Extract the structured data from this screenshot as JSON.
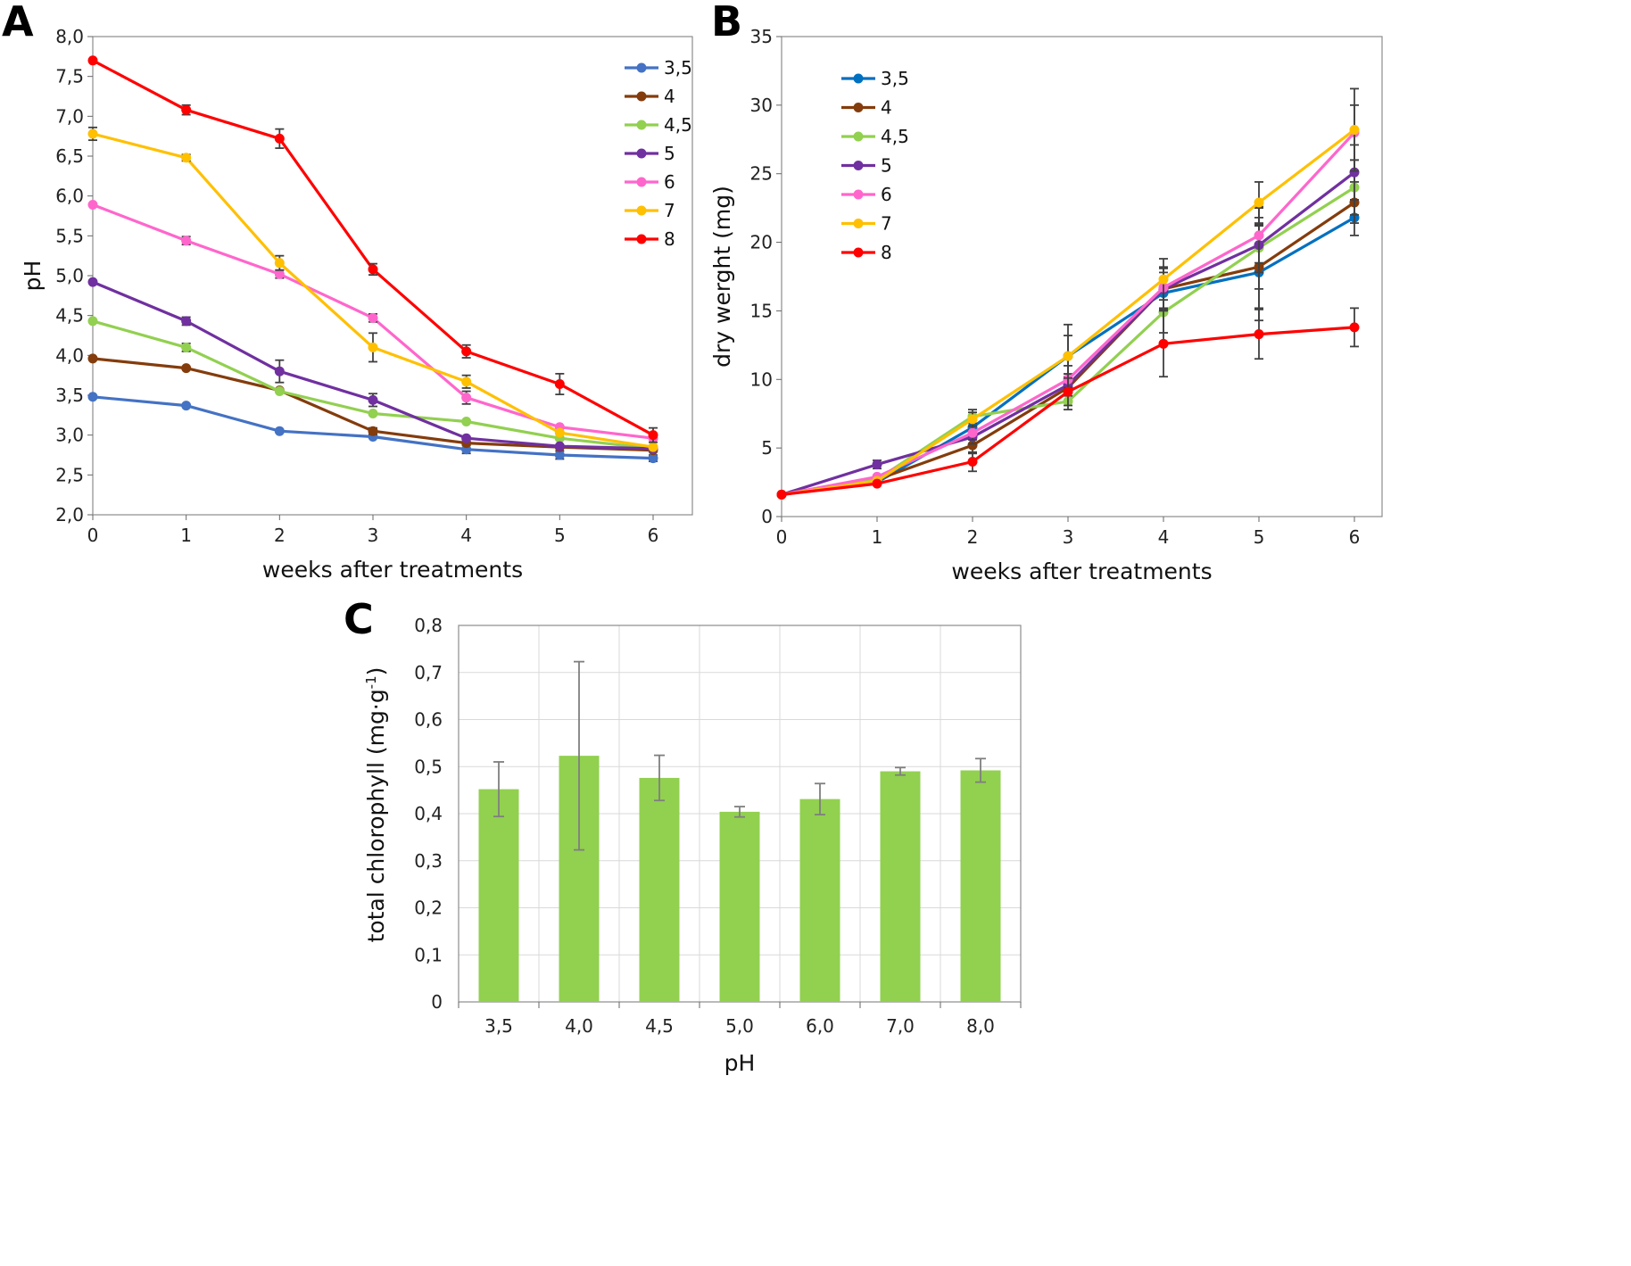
{
  "chart_data": [
    {
      "panel": "A",
      "type": "line",
      "xlabel": "weeks after treatments",
      "ylabel": "pH",
      "x": [
        0,
        1,
        2,
        3,
        4,
        5,
        6
      ],
      "xticks": [
        "0",
        "1",
        "2",
        "3",
        "4",
        "5",
        "6"
      ],
      "ylim": [
        2.0,
        8.0
      ],
      "yticks": [
        "2,0",
        "2,5",
        "3,0",
        "3,5",
        "4,0",
        "4,5",
        "5,0",
        "5,5",
        "6,0",
        "6,5",
        "7,0",
        "7,5",
        "8,0"
      ],
      "legend_position": "top-right",
      "series": [
        {
          "name": "3,5",
          "color": "#4472C4",
          "values": [
            3.48,
            3.37,
            3.05,
            2.98,
            2.82,
            2.75,
            2.71
          ],
          "errors": [
            0,
            0,
            0,
            0,
            0.05,
            0.05,
            0.04
          ]
        },
        {
          "name": "4",
          "color": "#843C0C",
          "values": [
            3.96,
            3.84,
            3.56,
            3.05,
            2.9,
            2.85,
            2.81
          ],
          "errors": [
            0,
            0,
            0,
            0.04,
            0,
            0,
            0
          ]
        },
        {
          "name": "4,5",
          "color": "#92D050",
          "values": [
            4.43,
            4.1,
            3.55,
            3.27,
            3.17,
            2.96,
            2.83
          ],
          "errors": [
            0,
            0.05,
            0,
            0,
            0,
            0,
            0
          ]
        },
        {
          "name": "5",
          "color": "#7030A0",
          "values": [
            4.92,
            4.43,
            3.8,
            3.44,
            2.96,
            2.86,
            2.83
          ],
          "errors": [
            0,
            0.05,
            0.14,
            0.08,
            0,
            0,
            0
          ]
        },
        {
          "name": "6",
          "color": "#FF66CC",
          "values": [
            5.89,
            5.44,
            5.02,
            4.47,
            3.47,
            3.1,
            2.96
          ],
          "errors": [
            0,
            0.05,
            0.05,
            0.05,
            0.08,
            0,
            0
          ]
        },
        {
          "name": "7",
          "color": "#FFC000",
          "values": [
            6.78,
            6.48,
            5.16,
            4.1,
            3.67,
            3.03,
            2.85
          ],
          "errors": [
            0.08,
            0.04,
            0.09,
            0.18,
            0.08,
            0,
            0
          ]
        },
        {
          "name": "8",
          "color": "#FF0000",
          "values": [
            7.7,
            7.08,
            6.72,
            5.08,
            4.05,
            3.64,
            3.0
          ],
          "errors": [
            0,
            0.06,
            0.12,
            0.07,
            0.08,
            0.13,
            0.09
          ]
        }
      ]
    },
    {
      "panel": "B",
      "type": "line",
      "xlabel": "weeks after treatments",
      "ylabel": "dry werght (mg)",
      "x": [
        0,
        1,
        2,
        3,
        4,
        5,
        6
      ],
      "xticks": [
        "0",
        "1",
        "2",
        "3",
        "4",
        "5",
        "6"
      ],
      "ylim": [
        0,
        35
      ],
      "yticks": [
        "0",
        "5",
        "10",
        "15",
        "20",
        "25",
        "30",
        "35"
      ],
      "legend_position": "top-left",
      "series": [
        {
          "name": "3,5",
          "color": "#0070C0",
          "values": [
            1.6,
            2.5,
            6.5,
            11.7,
            16.3,
            17.8,
            21.8
          ],
          "errors": [
            0,
            0,
            0.6,
            1.5,
            1.5,
            3.5,
            1.3
          ]
        },
        {
          "name": "4",
          "color": "#843C0C",
          "values": [
            1.6,
            2.7,
            5.2,
            9.4,
            16.6,
            18.2,
            22.9
          ],
          "errors": [
            0,
            0,
            0.6,
            1.0,
            1.5,
            3.0,
            1.5
          ]
        },
        {
          "name": "4,5",
          "color": "#92D050",
          "values": [
            1.6,
            2.7,
            7.3,
            8.4,
            14.9,
            19.6,
            24.0
          ],
          "errors": [
            0,
            0,
            0.5,
            0.6,
            1.5,
            3.0,
            2.0
          ]
        },
        {
          "name": "5",
          "color": "#7030A0",
          "values": [
            1.6,
            3.8,
            5.8,
            9.6,
            16.6,
            19.8,
            25.1
          ],
          "errors": [
            0,
            0.3,
            0.5,
            0.8,
            1.5,
            2.0,
            2.0
          ]
        },
        {
          "name": "6",
          "color": "#FF66CC",
          "values": [
            1.6,
            2.9,
            6.1,
            10.0,
            16.7,
            20.5,
            28.0
          ],
          "errors": [
            0,
            0,
            0.5,
            1.0,
            1.5,
            2.0,
            2.0
          ]
        },
        {
          "name": "7",
          "color": "#FFC000",
          "values": [
            1.6,
            2.6,
            7.1,
            11.7,
            17.3,
            22.9,
            28.2
          ],
          "errors": [
            0,
            0,
            0.5,
            2.3,
            1.5,
            1.5,
            3.0
          ]
        },
        {
          "name": "8",
          "color": "#FF0000",
          "values": [
            1.6,
            2.4,
            4.0,
            9.1,
            12.6,
            13.3,
            13.8
          ],
          "errors": [
            0,
            0,
            0.7,
            1.0,
            2.4,
            1.8,
            1.4
          ]
        }
      ]
    },
    {
      "panel": "C",
      "type": "bar",
      "xlabel": "pH",
      "ylabel": "total chlorophyll (mg·g",
      "ylabel_sup": "-1",
      "ylabel_close": ")",
      "categories": [
        "3,5",
        "4,0",
        "4,5",
        "5,0",
        "6,0",
        "7,0",
        "8,0"
      ],
      "values": [
        0.452,
        0.523,
        0.476,
        0.404,
        0.431,
        0.49,
        0.492
      ],
      "errors": [
        0.058,
        0.2,
        0.048,
        0.011,
        0.033,
        0.008,
        0.025
      ],
      "bar_color": "#92D050",
      "ylim": [
        0,
        0.8
      ],
      "yticks": [
        "0",
        "0,1",
        "0,2",
        "0,3",
        "0,4",
        "0,5",
        "0,6",
        "0,7",
        "0,8"
      ]
    }
  ]
}
